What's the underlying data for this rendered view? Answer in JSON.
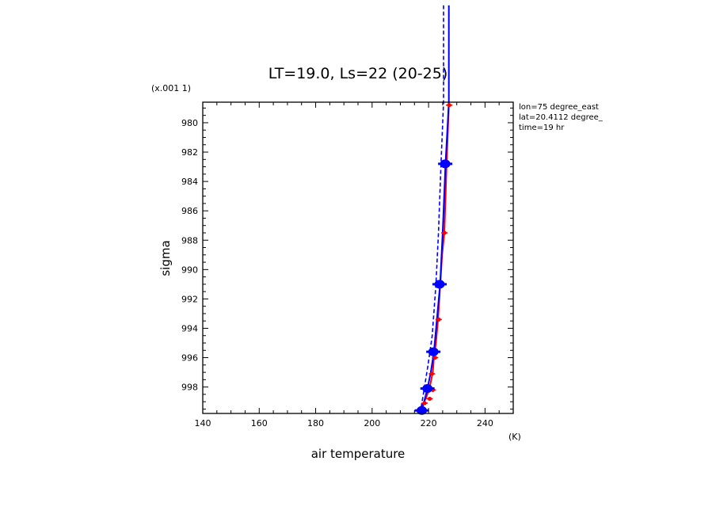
{
  "chart_data": {
    "type": "line",
    "title": "LT=19.0, Ls=22 (20-25)",
    "xlabel": "air temperature",
    "ylabel": "sigma",
    "x_unit": "(K)",
    "y_scale_note": "(x.001 1)",
    "xlim": [
      140,
      250
    ],
    "ylim": [
      999.8,
      978.6
    ],
    "x_ticks": [
      140,
      160,
      180,
      200,
      220,
      240
    ],
    "y_ticks": [
      980,
      982,
      984,
      986,
      988,
      990,
      992,
      994,
      996,
      998
    ],
    "grid": false,
    "legend": "none",
    "annotations": [
      "lon=75 degree_east",
      "lat=20.4112 degree_",
      "time=19 hr"
    ],
    "series": [
      {
        "style": "solid",
        "color": "#ff0000",
        "points": [
          [
            216.0,
            999.7
          ],
          [
            217.5,
            999.3
          ],
          [
            219.0,
            998.8
          ],
          [
            220.3,
            998.1
          ],
          [
            221.5,
            997.0
          ],
          [
            222.0,
            995.8
          ],
          [
            222.6,
            995.0
          ],
          [
            223.3,
            993.5
          ],
          [
            224.0,
            991.5
          ],
          [
            224.8,
            989.0
          ],
          [
            225.6,
            987.5
          ],
          [
            226.4,
            982.8
          ],
          [
            227.2,
            978.8
          ]
        ]
      },
      {
        "style": "solid",
        "color": "#0000ff",
        "points": [
          [
            217.2,
            999.8
          ],
          [
            218.3,
            999.1
          ],
          [
            219.5,
            998.2
          ],
          [
            220.8,
            997.0
          ],
          [
            221.9,
            995.6
          ],
          [
            223.0,
            993.3
          ],
          [
            224.1,
            991.0
          ],
          [
            225.0,
            987.5
          ],
          [
            226.0,
            982.8
          ],
          [
            227.2,
            978.6
          ],
          [
            227.2,
            972.0
          ]
        ]
      },
      {
        "style": "dashed",
        "color": "#0000ff",
        "points": [
          [
            217.0,
            999.8
          ],
          [
            218.4,
            998.2
          ],
          [
            219.8,
            996.5
          ],
          [
            221.3,
            994.5
          ],
          [
            222.6,
            991.0
          ],
          [
            223.5,
            987.5
          ],
          [
            224.4,
            982.8
          ],
          [
            225.3,
            978.6
          ],
          [
            225.3,
            972.0
          ]
        ]
      }
    ],
    "markers": [
      {
        "color": "#ff0000",
        "size": "small",
        "points": [
          [
            216.4,
            999.6
          ],
          [
            218.6,
            999.1
          ],
          [
            220.4,
            998.8
          ],
          [
            221.5,
            998.2
          ],
          [
            221.2,
            997.1
          ],
          [
            222.3,
            996.0
          ],
          [
            223.6,
            993.4
          ],
          [
            225.6,
            987.5
          ],
          [
            227.3,
            978.8
          ]
        ]
      },
      {
        "color": "#0000ff",
        "size": "large",
        "points": [
          [
            217.6,
            999.6
          ],
          [
            219.6,
            998.1
          ],
          [
            221.7,
            995.6
          ],
          [
            223.9,
            991.0
          ],
          [
            225.9,
            982.8
          ]
        ]
      }
    ]
  }
}
